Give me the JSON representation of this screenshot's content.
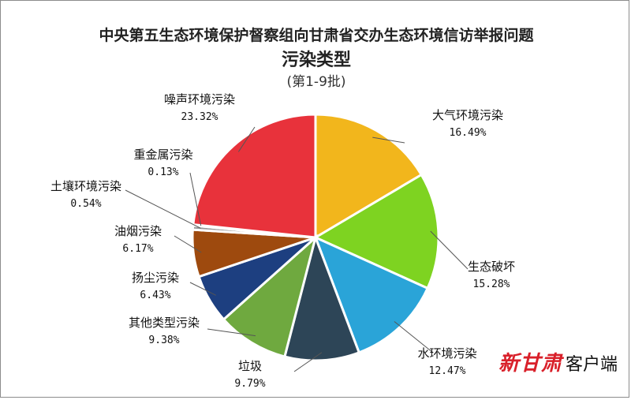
{
  "chart_data": {
    "type": "pie",
    "title": "中央第五生态环境保护督察组向甘肃省交办生态环境信访举报问题",
    "subtitle": "污染类型",
    "note": "(第1-9批)",
    "slices": [
      {
        "name": "大气环境污染",
        "value": 16.49,
        "label": "16.49%",
        "color": "#f2b61c"
      },
      {
        "name": "生态破坏",
        "value": 15.28,
        "label": "15.28%",
        "color": "#7ed321"
      },
      {
        "name": "水环境污染",
        "value": 12.47,
        "label": "12.47%",
        "color": "#2aa4d8"
      },
      {
        "name": "垃圾",
        "value": 9.79,
        "label": "9.79%",
        "color": "#2d4557"
      },
      {
        "name": "其他类型污染",
        "value": 9.38,
        "label": "9.38%",
        "color": "#6fa93f"
      },
      {
        "name": "扬尘污染",
        "value": 6.43,
        "label": "6.43%",
        "color": "#1d3f80"
      },
      {
        "name": "油烟污染",
        "value": 6.17,
        "label": "6.17%",
        "color": "#9e4a0e"
      },
      {
        "name": "土壤环境污染",
        "value": 0.54,
        "label": "0.54%",
        "color": "#9a9a9a"
      },
      {
        "name": "重金属污染",
        "value": 0.13,
        "label": "0.13%",
        "color": "#6a6a6a"
      },
      {
        "name": "噪声环境污染",
        "value": 23.32,
        "label": "23.32%",
        "color": "#e8323b"
      }
    ]
  },
  "watermark": {
    "brand": "新甘肃",
    "suffix": "客户端"
  }
}
